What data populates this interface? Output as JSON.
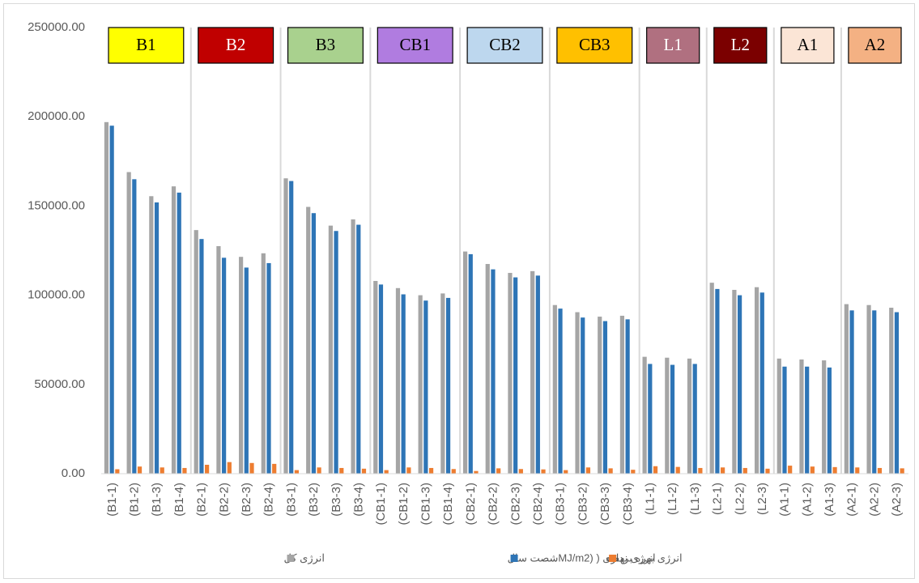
{
  "chart_data": {
    "type": "bar",
    "categories": [
      "(B1-1)",
      "(B1-2)",
      "(B1-3)",
      "(B1-4)",
      "(B2-1)",
      "(B2-2)",
      "(B2-3)",
      "(B2-4)",
      "(B3-1)",
      "(B3-2)",
      "(B3-3)",
      "(B3-4)",
      "(CB1-1)",
      "(CB1-2)",
      "(CB1-3)",
      "(CB1-4)",
      "(CB2-1)",
      "(CB2-2)",
      "(CB2-3)",
      "(CB2-4)",
      "(CB3-1)",
      "(CB3-2)",
      "(CB3-3)",
      "(CB3-4)",
      "(L1-1)",
      "(L1-2)",
      "(L1-3)",
      "(L2-1)",
      "(L2-2)",
      "(L2-3)",
      "(A1-1)",
      "(A1-2)",
      "(A1-3)",
      "(A2-1)",
      "(A2-2)",
      "(A2-3)"
    ],
    "series": [
      {
        "name": "انرژی کل",
        "color": "#a5a5a5",
        "values": [
          197000,
          169000,
          155500,
          161000,
          136500,
          127500,
          121500,
          123500,
          165500,
          149500,
          139000,
          142500,
          108000,
          104000,
          100000,
          101000,
          124500,
          117500,
          112500,
          113500,
          94500,
          90500,
          88000,
          88500,
          65500,
          65000,
          64500,
          107000,
          103000,
          104500,
          64500,
          64000,
          63500,
          95000,
          94500,
          93000
        ]
      },
      {
        "name": "انرژی بهره برداری ( (MJ/m2شصت سال",
        "color": "#2e75b6",
        "values": [
          195000,
          165000,
          152000,
          157500,
          131500,
          121000,
          115500,
          118000,
          164000,
          146000,
          136000,
          139500,
          106000,
          100500,
          97000,
          98500,
          123000,
          114500,
          110000,
          111000,
          92500,
          87500,
          85500,
          86500,
          61500,
          61000,
          61500,
          103500,
          100000,
          101500,
          60000,
          60000,
          59500,
          91500,
          91500,
          90500
        ]
      },
      {
        "name": "انرژی نهفته",
        "color": "#ed7d31",
        "values": [
          2500,
          4000,
          3500,
          3200,
          5000,
          6500,
          6000,
          5500,
          2000,
          3500,
          3200,
          2800,
          2000,
          3500,
          3200,
          2600,
          1500,
          3000,
          2600,
          2400,
          2000,
          3500,
          3000,
          2200,
          4200,
          3800,
          3200,
          3500,
          3200,
          2800,
          4500,
          4000,
          3700,
          3500,
          3200,
          3000
        ]
      }
    ],
    "groups": [
      {
        "label": "B1",
        "color": "#ffff00",
        "text_color": "#000000"
      },
      {
        "label": "B2",
        "color": "#c00000",
        "text_color": "#ffffff"
      },
      {
        "label": "B3",
        "color": "#a9d18e",
        "text_color": "#000000"
      },
      {
        "label": "CB1",
        "color": "#b07ce0",
        "text_color": "#000000"
      },
      {
        "label": "CB2",
        "color": "#bdd7ee",
        "text_color": "#000000"
      },
      {
        "label": "CB3",
        "color": "#ffc000",
        "text_color": "#000000"
      },
      {
        "label": "L1",
        "color": "#b07080",
        "text_color": "#ffffff"
      },
      {
        "label": "L2",
        "color": "#7b0000",
        "text_color": "#ffffff"
      },
      {
        "label": "A1",
        "color": "#fbe5d6",
        "text_color": "#000000"
      },
      {
        "label": "A2",
        "color": "#f4b183",
        "text_color": "#000000"
      }
    ],
    "ylim": [
      0,
      250000
    ],
    "yticks": [
      {
        "value": 0,
        "label": "0.00"
      },
      {
        "value": 50000,
        "label": "50000.00"
      },
      {
        "value": 100000,
        "label": "100000.00"
      },
      {
        "value": 150000,
        "label": "150000.00"
      },
      {
        "value": 200000,
        "label": "200000.00"
      },
      {
        "value": 250000,
        "label": "250000.00"
      }
    ],
    "grid": false
  }
}
